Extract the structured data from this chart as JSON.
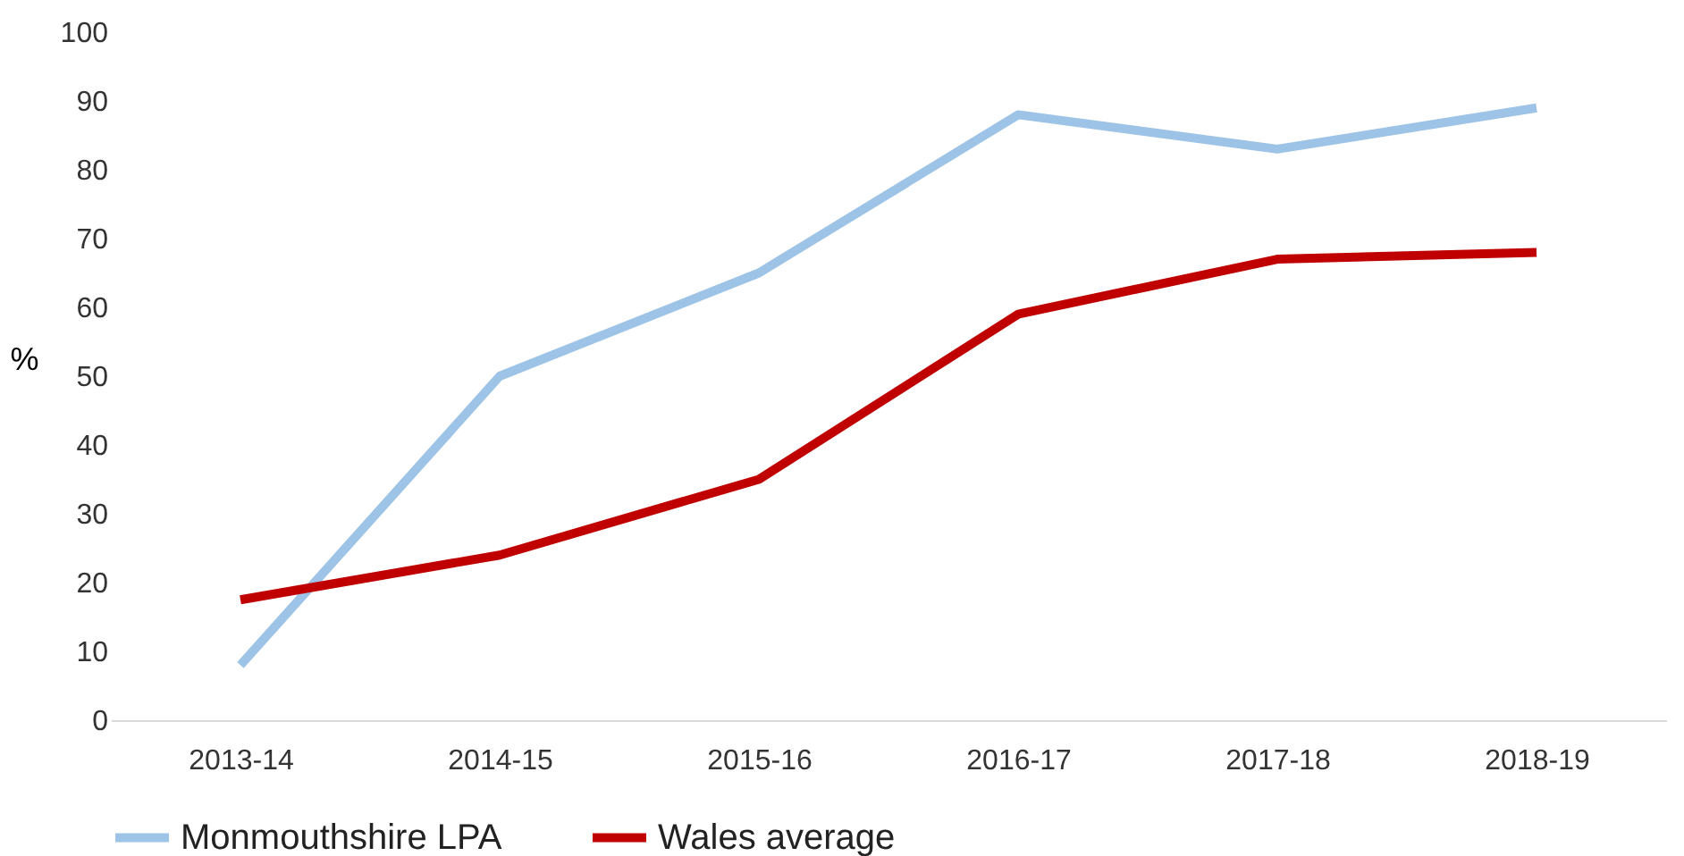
{
  "chart_data": {
    "type": "line",
    "ylabel": "%",
    "categories": [
      "2013-14",
      "2014-15",
      "2015-16",
      "2016-17",
      "2017-18",
      "2018-19"
    ],
    "series": [
      {
        "name": "Monmouthshire LPA",
        "color": "#9dc3e6",
        "values": [
          8,
          50,
          65,
          88,
          83,
          89
        ]
      },
      {
        "name": "Wales average",
        "color": "#c00000",
        "values": [
          17.5,
          24,
          35,
          59,
          67,
          68
        ]
      }
    ],
    "ylim": [
      0,
      100
    ],
    "yticks": [
      0,
      10,
      20,
      30,
      40,
      50,
      60,
      70,
      80,
      90,
      100
    ],
    "grid": false,
    "legend": "bottom",
    "marker": "none",
    "line_style": "solid"
  }
}
